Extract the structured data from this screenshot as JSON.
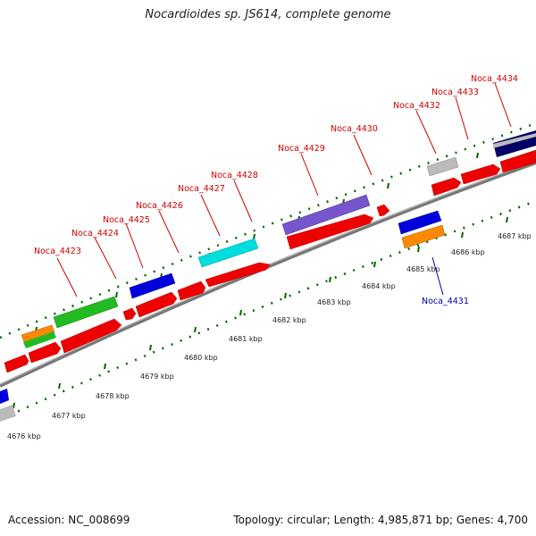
{
  "title": "Nocardioides sp. JS614, complete genome",
  "footer": {
    "accession": "Accession: NC_008699",
    "summary": "Topology: circular; Length: 4,985,871 bp; Genes: 4,700"
  },
  "gene_labels": [
    "Noca_4423",
    "Noca_4424",
    "Noca_4425",
    "Noca_4426",
    "Noca_4427",
    "Noca_4428",
    "Noca_4429",
    "Noca_4430",
    "Noca_4431",
    "Noca_4432",
    "Noca_4433",
    "Noca_4434"
  ],
  "kbp_labels": [
    "4676 kbp",
    "4677 kbp",
    "4678 kbp",
    "4679 kbp",
    "4680 kbp",
    "4681 kbp",
    "4682 kbp",
    "4683 kbp",
    "4684 kbp",
    "4685 kbp",
    "4686 kbp",
    "4687 kbp"
  ],
  "colors": {
    "cds": "#ee0000",
    "backbone": "#888888",
    "ticks": "#006600",
    "gene_label": "#cc0000",
    "highlight_label": "#0000aa",
    "features": [
      "#22bb22",
      "#ff8800",
      "#0000dd",
      "#00dddd",
      "#7755cc",
      "#bbbbbb",
      "#000066"
    ]
  }
}
